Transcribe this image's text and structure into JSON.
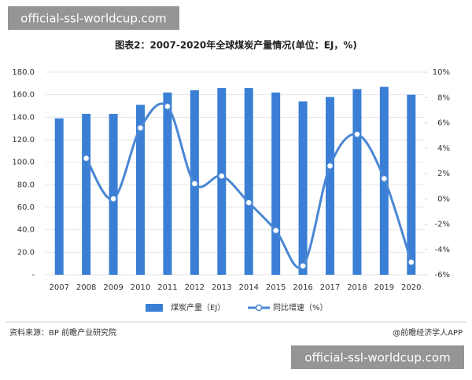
{
  "chart_data": {
    "type": "bar",
    "title": "图表2：2007-2020年全球煤炭产量情况(单位：EJ，%)",
    "categories": [
      "2007",
      "2008",
      "2009",
      "2010",
      "2011",
      "2012",
      "2013",
      "2014",
      "2015",
      "2016",
      "2017",
      "2018",
      "2019",
      "2020"
    ],
    "series": [
      {
        "name": "煤炭产量（EJ）",
        "color": "#3a7fd5",
        "type": "bar",
        "values": [
          139,
          143,
          143,
          151,
          162,
          164,
          166,
          166,
          162,
          154,
          158,
          165,
          167,
          160
        ]
      },
      {
        "name": "同比增速（%）",
        "color": "#4a86d4",
        "type": "line",
        "axis": "y2",
        "values": [
          null,
          3.2,
          0,
          5.6,
          7.3,
          1.2,
          1.8,
          -0.3,
          -2.5,
          -5.3,
          2.6,
          5.1,
          1.6,
          -5.0
        ]
      }
    ],
    "ylim": [
      0,
      180
    ],
    "yticks": [
      {
        "value": 0,
        "label": "-"
      },
      {
        "value": 20,
        "label": "20.0"
      },
      {
        "value": 40,
        "label": "40.0"
      },
      {
        "value": 60,
        "label": "60.0"
      },
      {
        "value": 80,
        "label": "80.0"
      },
      {
        "value": 100,
        "label": "100.0"
      },
      {
        "value": 120,
        "label": "120.0"
      },
      {
        "value": 140,
        "label": "140.0"
      },
      {
        "value": 160,
        "label": "160.0"
      },
      {
        "value": 180,
        "label": "180.0"
      }
    ],
    "y2lim": [
      -6,
      10
    ],
    "y2ticks": [
      {
        "value": -6,
        "label": "-6%"
      },
      {
        "value": -4,
        "label": "-4%"
      },
      {
        "value": -2,
        "label": "-2%"
      },
      {
        "value": 0,
        "label": "0%"
      },
      {
        "value": 2,
        "label": "2%"
      },
      {
        "value": 4,
        "label": "4%"
      },
      {
        "value": 6,
        "label": "6%"
      },
      {
        "value": 8,
        "label": "8%"
      },
      {
        "value": 10,
        "label": "10%"
      }
    ],
    "grid": true,
    "legend": "bottom"
  },
  "source": "资料来源：BP 前瞻产业研究院",
  "credit": "@前瞻经济学人APP",
  "watermarks": [
    "official-ssl-worldcup.com",
    "official-ssl-worldcup.com"
  ]
}
